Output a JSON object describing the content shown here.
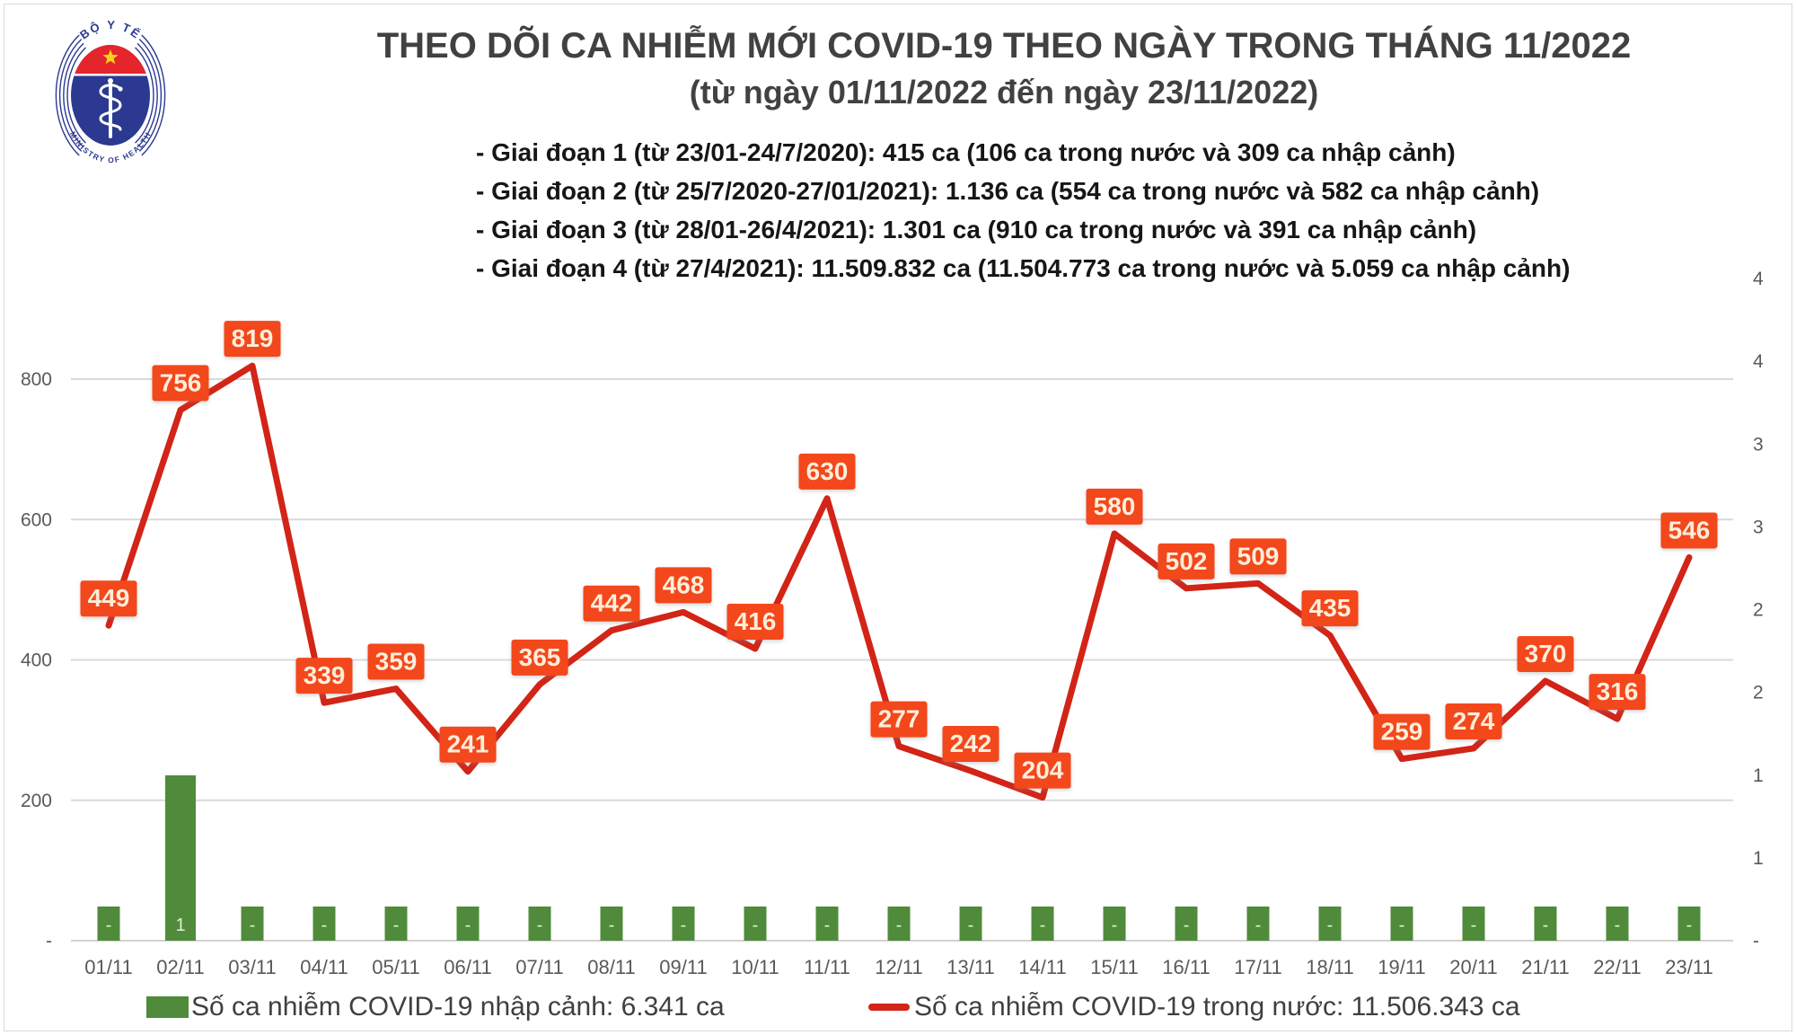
{
  "logo": {
    "top_text": "BỘ Y TẾ",
    "bottom_text": "MINISTRY OF HEALTH",
    "navy": "#2b3990",
    "red": "#e4252b",
    "star_yellow": "#f8d21a"
  },
  "header": {
    "title": "THEO DÕI CA NHIỄM MỚI COVID-19 THEO NGÀY TRONG THÁNG 11/2022",
    "subtitle": "(từ ngày 01/11/2022 đến ngày 23/11/2022)",
    "bullets": [
      "- Giai đoạn 1 (từ 23/01-24/7/2020): 415 ca (106 ca trong nước và 309 ca nhập cảnh)",
      "- Giai đoạn 2 (từ 25/7/2020-27/01/2021): 1.136 ca (554 ca trong nước và 582 ca nhập cảnh)",
      "- Giai đoạn 3 (từ 28/01-26/4/2021): 1.301 ca (910 ca trong nước và 391 ca nhập cảnh)",
      "- Giai đoạn 4 (từ 27/4/2021): 11.509.832 ca (11.504.773 ca trong nước và 5.059 ca nhập cảnh)"
    ]
  },
  "chart_data": {
    "type": "combo: line + bar",
    "categories": [
      "01/11",
      "02/11",
      "03/11",
      "04/11",
      "05/11",
      "06/11",
      "07/11",
      "08/11",
      "09/11",
      "10/11",
      "11/11",
      "12/11",
      "13/11",
      "14/11",
      "15/11",
      "16/11",
      "17/11",
      "18/11",
      "19/11",
      "20/11",
      "21/11",
      "22/11",
      "23/11"
    ],
    "series": [
      {
        "name": "Số ca nhiễm COVID-19 trong nước",
        "type": "line",
        "color": "#d22417",
        "values": [
          449,
          756,
          819,
          339,
          359,
          241,
          365,
          442,
          468,
          416,
          630,
          277,
          242,
          204,
          580,
          502,
          509,
          435,
          259,
          274,
          370,
          316,
          546
        ]
      },
      {
        "name": "Số ca nhiễm COVID-19 nhập cảnh",
        "type": "bar",
        "color": "#4f8b3b",
        "values": [
          0,
          1,
          0,
          0,
          0,
          0,
          0,
          0,
          0,
          0,
          0,
          0,
          0,
          0,
          0,
          0,
          0,
          0,
          0,
          0,
          0,
          0,
          0
        ],
        "values_display": [
          "-",
          "1",
          "-",
          "-",
          "-",
          "-",
          "-",
          "-",
          "-",
          "-",
          "-",
          "-",
          "-",
          "-",
          "-",
          "-",
          "-",
          "-",
          "-",
          "-",
          "-",
          "-",
          "-"
        ]
      }
    ],
    "left_axis": {
      "ticks": [
        "-",
        "200",
        "400",
        "600",
        "800"
      ],
      "range": [
        0,
        850
      ],
      "grid": true
    },
    "right_axis": {
      "ticks": [
        "-",
        "1",
        "1",
        "2",
        "2",
        "3",
        "3",
        "4",
        "4"
      ],
      "range": [
        0,
        4
      ],
      "grid": false
    },
    "label_box_color": "#f3471d",
    "label_text_color": "#fdeeda",
    "gridline_color": "#d9d9d9",
    "axis_text_color": "#595959",
    "legend_position": "bottom"
  },
  "legend": {
    "items": [
      {
        "swatch": "bar",
        "color": "#4f8b3b",
        "label": "Số ca nhiễm COVID-19 nhập cảnh: 6.341 ca"
      },
      {
        "swatch": "line",
        "color": "#d22417",
        "label": "Số ca nhiễm COVID-19 trong nước: 11.506.343 ca"
      }
    ]
  }
}
